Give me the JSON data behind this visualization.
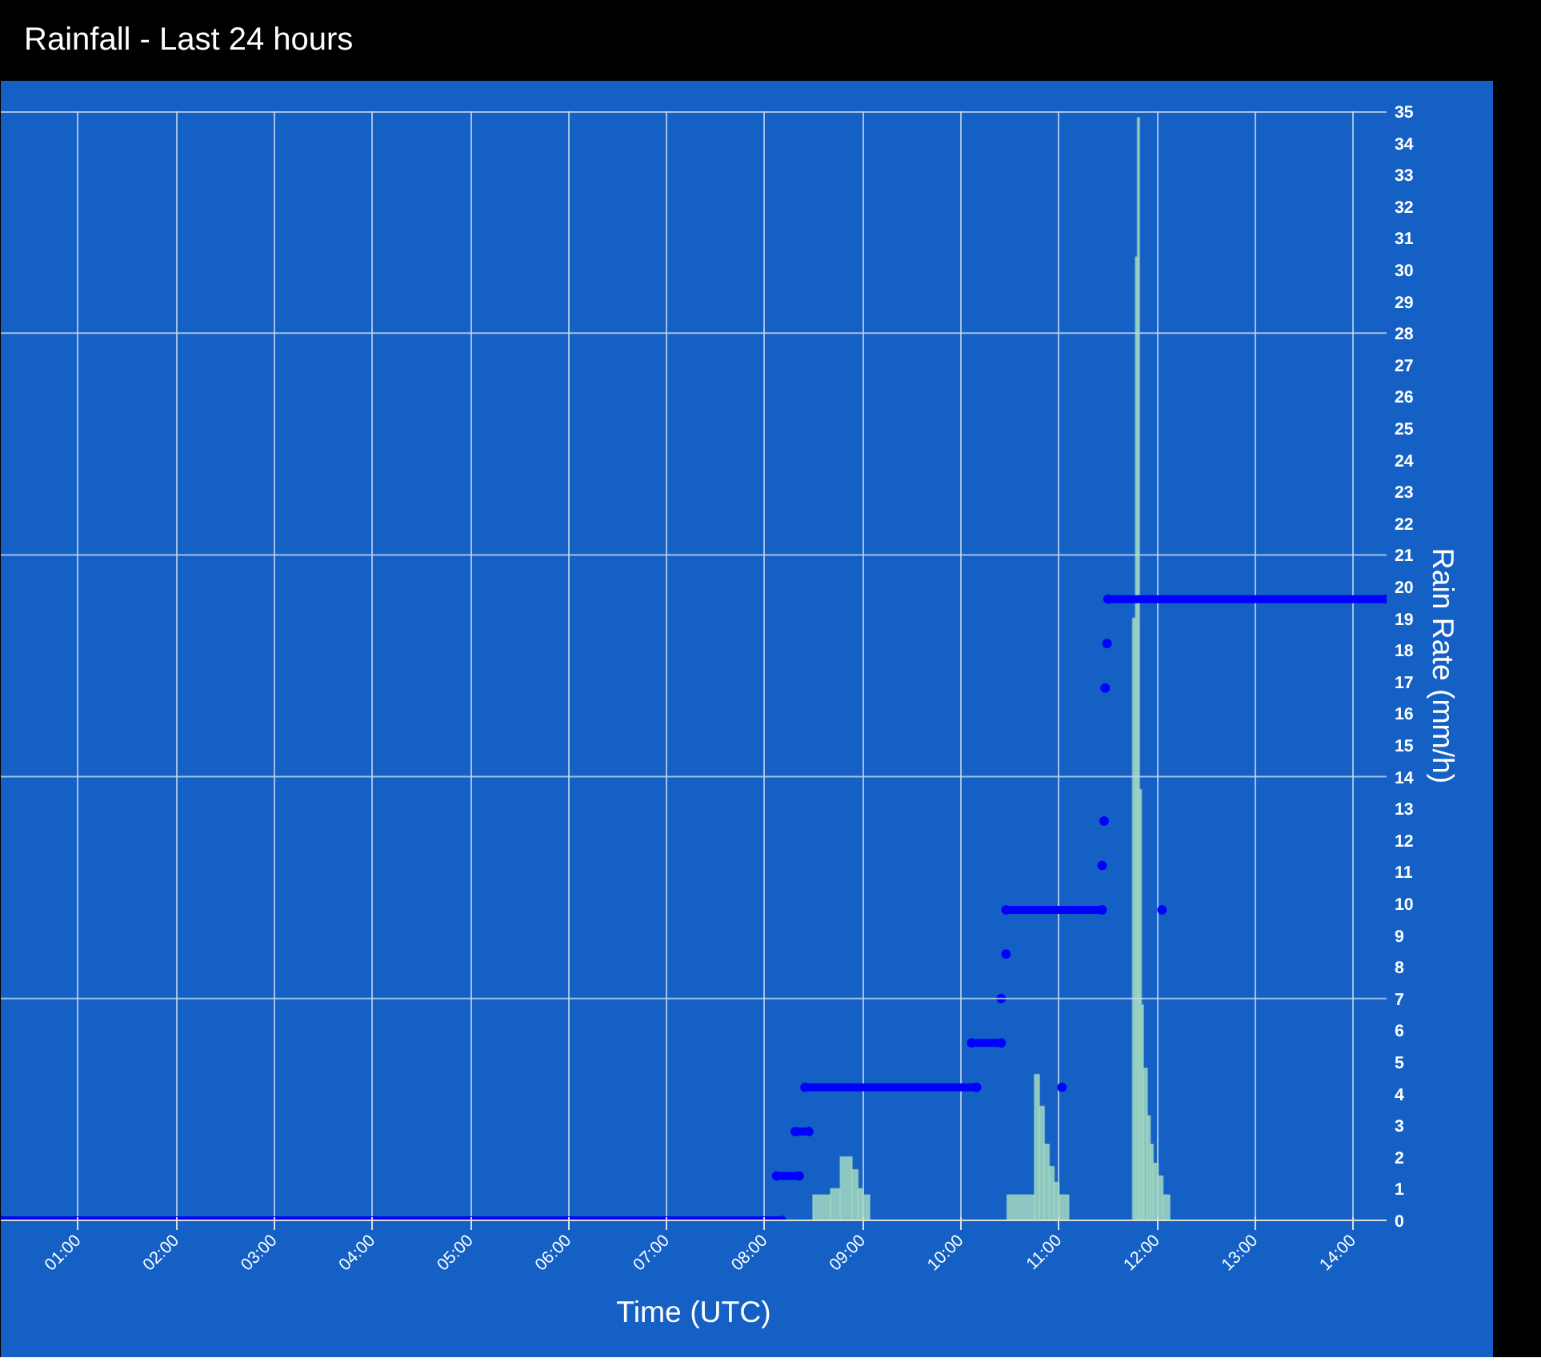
{
  "chart_data": {
    "type": "histogram",
    "title": "Rainfall - Last 24 hours",
    "xlabel": "Time (UTC)",
    "y2label": "Rain Rate (mm/h)",
    "xlim": [
      0.21,
      14.34
    ],
    "xticks": [
      {
        "value": 1,
        "label": "01:00"
      },
      {
        "value": 2,
        "label": "02:00"
      },
      {
        "value": 3,
        "label": "03:00"
      },
      {
        "value": 4,
        "label": "04:00"
      },
      {
        "value": 5,
        "label": "05:00"
      },
      {
        "value": 6,
        "label": "06:00"
      },
      {
        "value": 7,
        "label": "07:00"
      },
      {
        "value": 8,
        "label": "08:00"
      },
      {
        "value": 9,
        "label": "09:00"
      },
      {
        "value": 10,
        "label": "10:00"
      },
      {
        "value": 11,
        "label": "11:00"
      },
      {
        "value": 12,
        "label": "12:00"
      },
      {
        "value": 13,
        "label": "13:00"
      },
      {
        "value": 14,
        "label": "14:00"
      }
    ],
    "ref_lines": [
      {
        "axis": "y2",
        "value": 7,
        "color": "#c8d8f0"
      },
      {
        "axis": "y2",
        "value": 14,
        "color": "#c8d8f0"
      },
      {
        "axis": "y2",
        "value": 21,
        "color": "#c8d8f0"
      },
      {
        "axis": "y2",
        "value": 28,
        "color": "#c8d8f0"
      },
      {
        "axis": "y2",
        "value": 35,
        "color": "#c8d8f0"
      }
    ],
    "y2lim": [
      0,
      35
    ],
    "y2ticks": [
      0,
      1,
      2,
      3,
      4,
      5,
      6,
      7,
      8,
      9,
      10,
      11,
      12,
      13,
      14,
      15,
      16,
      17,
      18,
      19,
      20,
      21,
      22,
      23,
      24,
      25,
      26,
      27,
      28,
      29,
      30,
      31,
      32,
      33,
      34,
      35
    ],
    "grid": "x",
    "series": [
      {
        "axis": "y2",
        "color": "#a3d9c1",
        "bins": [
          8.49,
          8.67,
          8.77,
          8.89,
          8.95,
          9.0,
          9.07,
          10.47,
          10.75,
          10.8,
          10.85,
          10.9,
          10.95,
          11.0,
          11.1,
          11.75,
          11.78,
          11.8,
          11.82,
          11.84,
          11.86,
          11.9,
          11.93,
          11.96,
          12.01,
          12.06,
          12.13
        ],
        "values": [
          0.8,
          1.0,
          2.0,
          1.6,
          1.0,
          0.8,
          null,
          0.8,
          4.6,
          3.6,
          2.4,
          1.7,
          1.2,
          0.8,
          null,
          19.0,
          30.4,
          34.8,
          13.6,
          6.8,
          4.8,
          3.3,
          2.4,
          1.8,
          1.4,
          0.8
        ]
      },
      {
        "type": "line",
        "axis": "y2",
        "color": "#0000ff",
        "marker": "circle",
        "x": [
          0.21,
          8.17,
          null,
          8.12,
          8.35,
          null,
          8.31,
          8.45,
          null,
          8.41,
          10.16,
          null,
          10.11,
          10.41,
          null,
          10.41,
          null,
          10.46,
          null,
          10.46,
          11.44,
          null,
          11.03,
          null,
          11.44,
          null,
          11.46,
          null,
          11.47,
          null,
          11.49,
          null,
          11.5,
          14.34,
          null,
          12.05
        ],
        "values": [
          0,
          0,
          null,
          1.4,
          1.4,
          null,
          2.8,
          2.8,
          null,
          4.2,
          4.2,
          null,
          5.6,
          5.6,
          null,
          7.0,
          null,
          8.4,
          null,
          9.8,
          9.8,
          null,
          4.2,
          null,
          11.2,
          null,
          12.6,
          null,
          16.8,
          null,
          18.2,
          null,
          19.6,
          19.6,
          null,
          9.8
        ]
      }
    ]
  }
}
